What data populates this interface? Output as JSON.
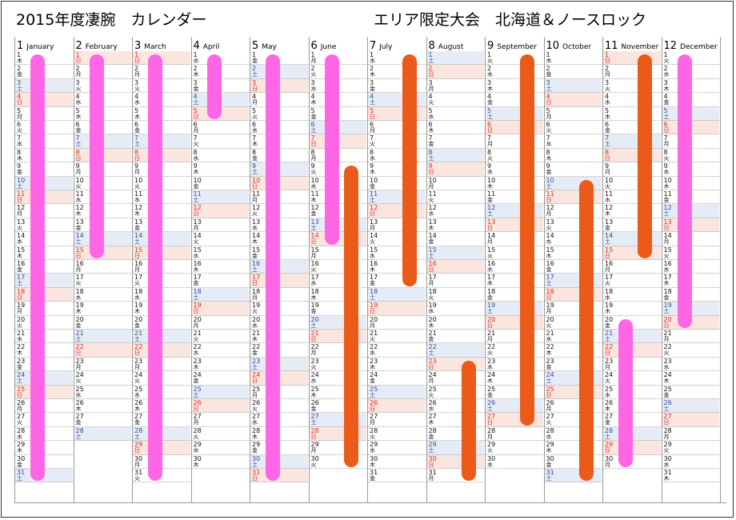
{
  "title": "2015年度凄腕　カレンダー",
  "subtitle": "エリア限定大会　北海道＆ノースロック",
  "colors": {
    "saturday_bg": "#e6ecf5",
    "sunday_bg": "#fae6de",
    "pink_bar": "#ff66e6",
    "orange_bar": "#ec5a1a"
  },
  "weekdays": [
    "月",
    "火",
    "水",
    "木",
    "金",
    "土",
    "日"
  ],
  "months": [
    {
      "num": "1",
      "name": "January",
      "days": 31,
      "start": 3
    },
    {
      "num": "2",
      "name": "February",
      "days": 28,
      "start": 6
    },
    {
      "num": "3",
      "name": "March",
      "days": 31,
      "start": 6
    },
    {
      "num": "4",
      "name": "April",
      "days": 30,
      "start": 2
    },
    {
      "num": "5",
      "name": "May",
      "days": 31,
      "start": 4
    },
    {
      "num": "6",
      "name": "June",
      "days": 30,
      "start": 0
    },
    {
      "num": "7",
      "name": "July",
      "days": 31,
      "start": 2
    },
    {
      "num": "8",
      "name": "August",
      "days": 31,
      "start": 5
    },
    {
      "num": "9",
      "name": "September",
      "days": 30,
      "start": 1
    },
    {
      "num": "10",
      "name": "October",
      "days": 31,
      "start": 3
    },
    {
      "num": "11",
      "name": "November",
      "days": 30,
      "start": 6
    },
    {
      "num": "12",
      "name": "December",
      "days": 31,
      "start": 1
    }
  ],
  "periods": [
    {
      "month": 0,
      "from": 1,
      "to": 31,
      "color": "pink"
    },
    {
      "month": 1,
      "from": 1,
      "to": 15,
      "color": "pink"
    },
    {
      "month": 2,
      "from": 1,
      "to": 31,
      "color": "pink"
    },
    {
      "month": 3,
      "from": 1,
      "to": 5,
      "color": "pink"
    },
    {
      "month": 4,
      "from": 1,
      "to": 31,
      "color": "pink"
    },
    {
      "month": 5,
      "from": 1,
      "to": 14,
      "color": "pink"
    },
    {
      "month": 5,
      "from": 9,
      "to": 30,
      "color": "orange"
    },
    {
      "month": 6,
      "from": 1,
      "to": 17,
      "color": "orange"
    },
    {
      "month": 7,
      "from": 23,
      "to": 31,
      "color": "orange"
    },
    {
      "month": 8,
      "from": 1,
      "to": 27,
      "color": "orange"
    },
    {
      "month": 9,
      "from": 10,
      "to": 31,
      "color": "orange"
    },
    {
      "month": 10,
      "from": 1,
      "to": 15,
      "color": "orange"
    },
    {
      "month": 10,
      "from": 20,
      "to": 30,
      "color": "pink"
    },
    {
      "month": 11,
      "from": 1,
      "to": 20,
      "color": "pink"
    }
  ]
}
